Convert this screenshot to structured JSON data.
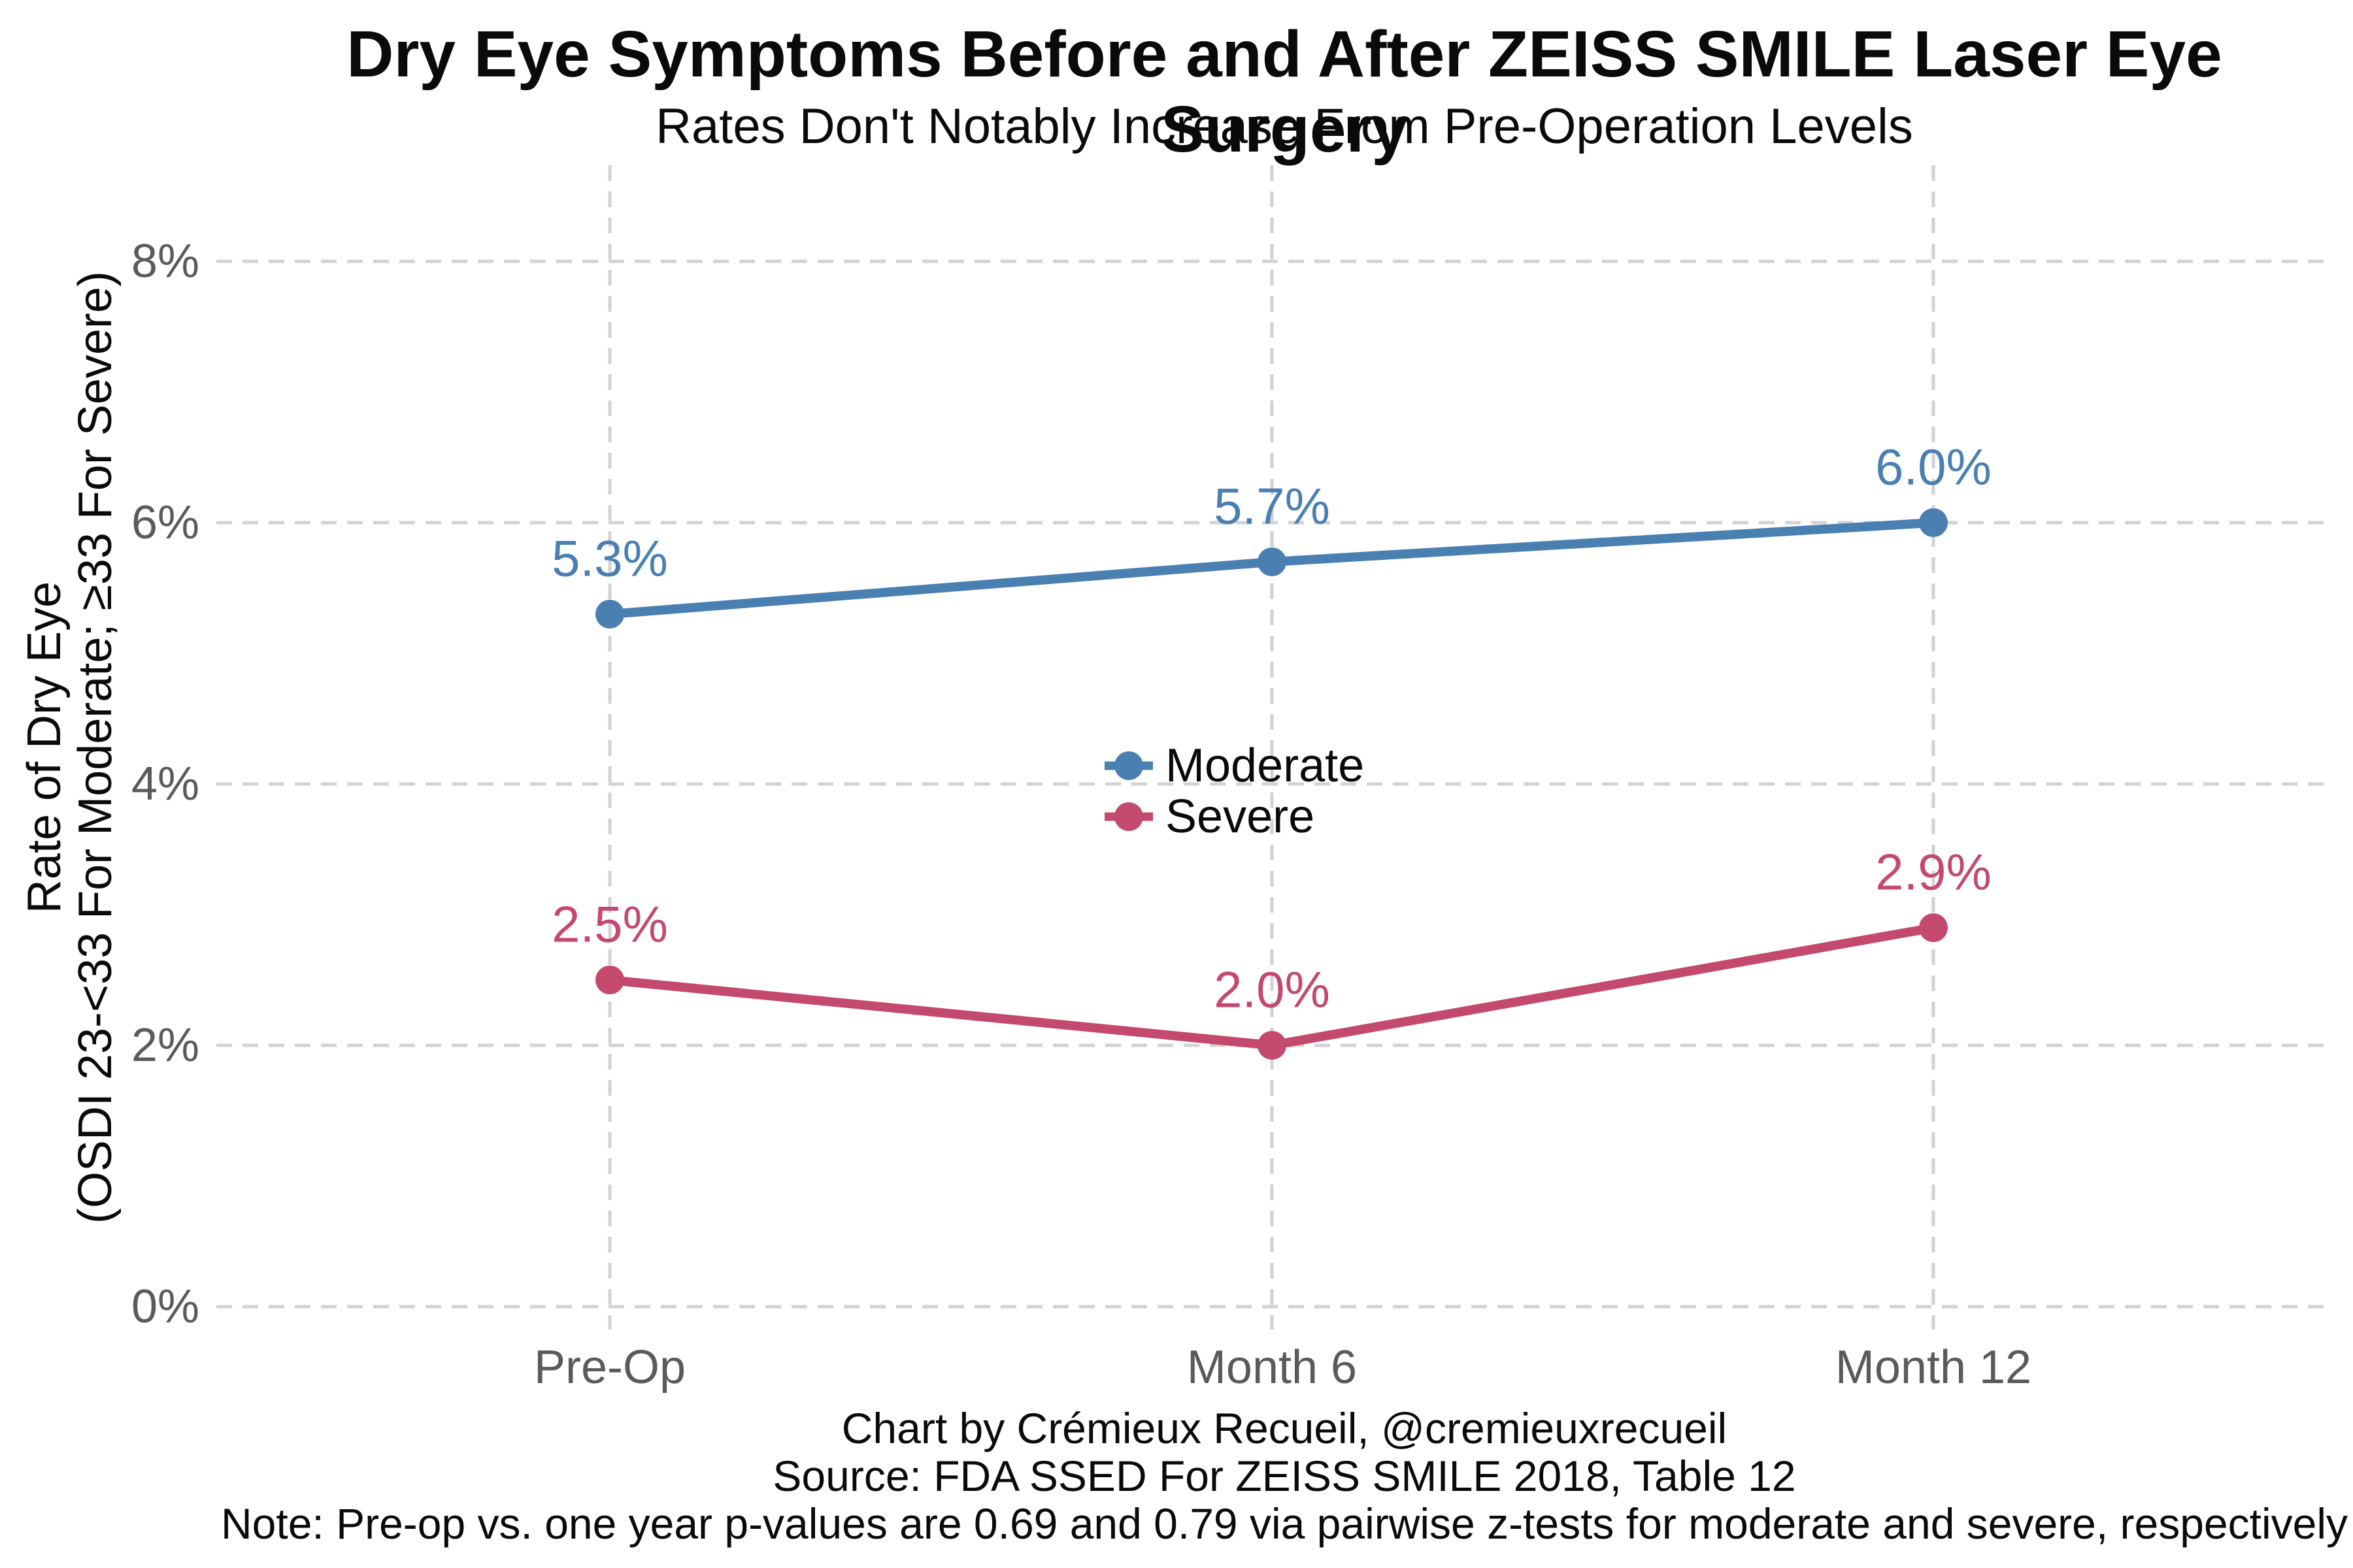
{
  "chart_data": {
    "type": "line",
    "title": "Dry Eye Symptoms Before and After ZEISS SMILE Laser Eye Surgery",
    "subtitle": "Rates Don't Notably Increase From Pre-Operation Levels",
    "ylabel_line1": "Rate of Dry Eye",
    "ylabel_line2": "(OSDI 23-<33 For Moderate; ≥33 For Severe)",
    "xlabel": "",
    "categories": [
      "Pre-Op",
      "Month 6",
      "Month 12"
    ],
    "series": [
      {
        "name": "Moderate",
        "color": "#4a7fb2",
        "values": [
          5.3,
          5.7,
          6.0
        ],
        "point_labels": [
          "5.3%",
          "5.7%",
          "6.0%"
        ]
      },
      {
        "name": "Severe",
        "color": "#c4496e",
        "values": [
          2.5,
          2.0,
          2.9
        ],
        "point_labels": [
          "2.5%",
          "2.0%",
          "2.9%"
        ]
      }
    ],
    "y_ticks": [
      {
        "value": 0,
        "label": "0%"
      },
      {
        "value": 2,
        "label": "2%"
      },
      {
        "value": 4,
        "label": "4%"
      },
      {
        "value": 6,
        "label": "6%"
      },
      {
        "value": 8,
        "label": "8%"
      }
    ],
    "ylim": [
      0,
      8
    ],
    "grid": "dashed-both-axes",
    "legend_position": "inside-center",
    "caption_line1": "Chart by Crémieux Recueil, @cremieuxrecueil",
    "caption_line2": "Source: FDA SSED For ZEISS SMILE 2018, Table 12",
    "caption_line3": "Note: Pre-op vs. one year p-values are 0.69 and 0.79 via pairwise z-tests for moderate and severe, respectively"
  },
  "colors": {
    "background": "#ffffff",
    "gridline": "#d2d2d2",
    "axis_text": "#5a5a5a",
    "text": "#0a0a0a",
    "moderate": "#4a7fb2",
    "severe": "#c4496e"
  }
}
